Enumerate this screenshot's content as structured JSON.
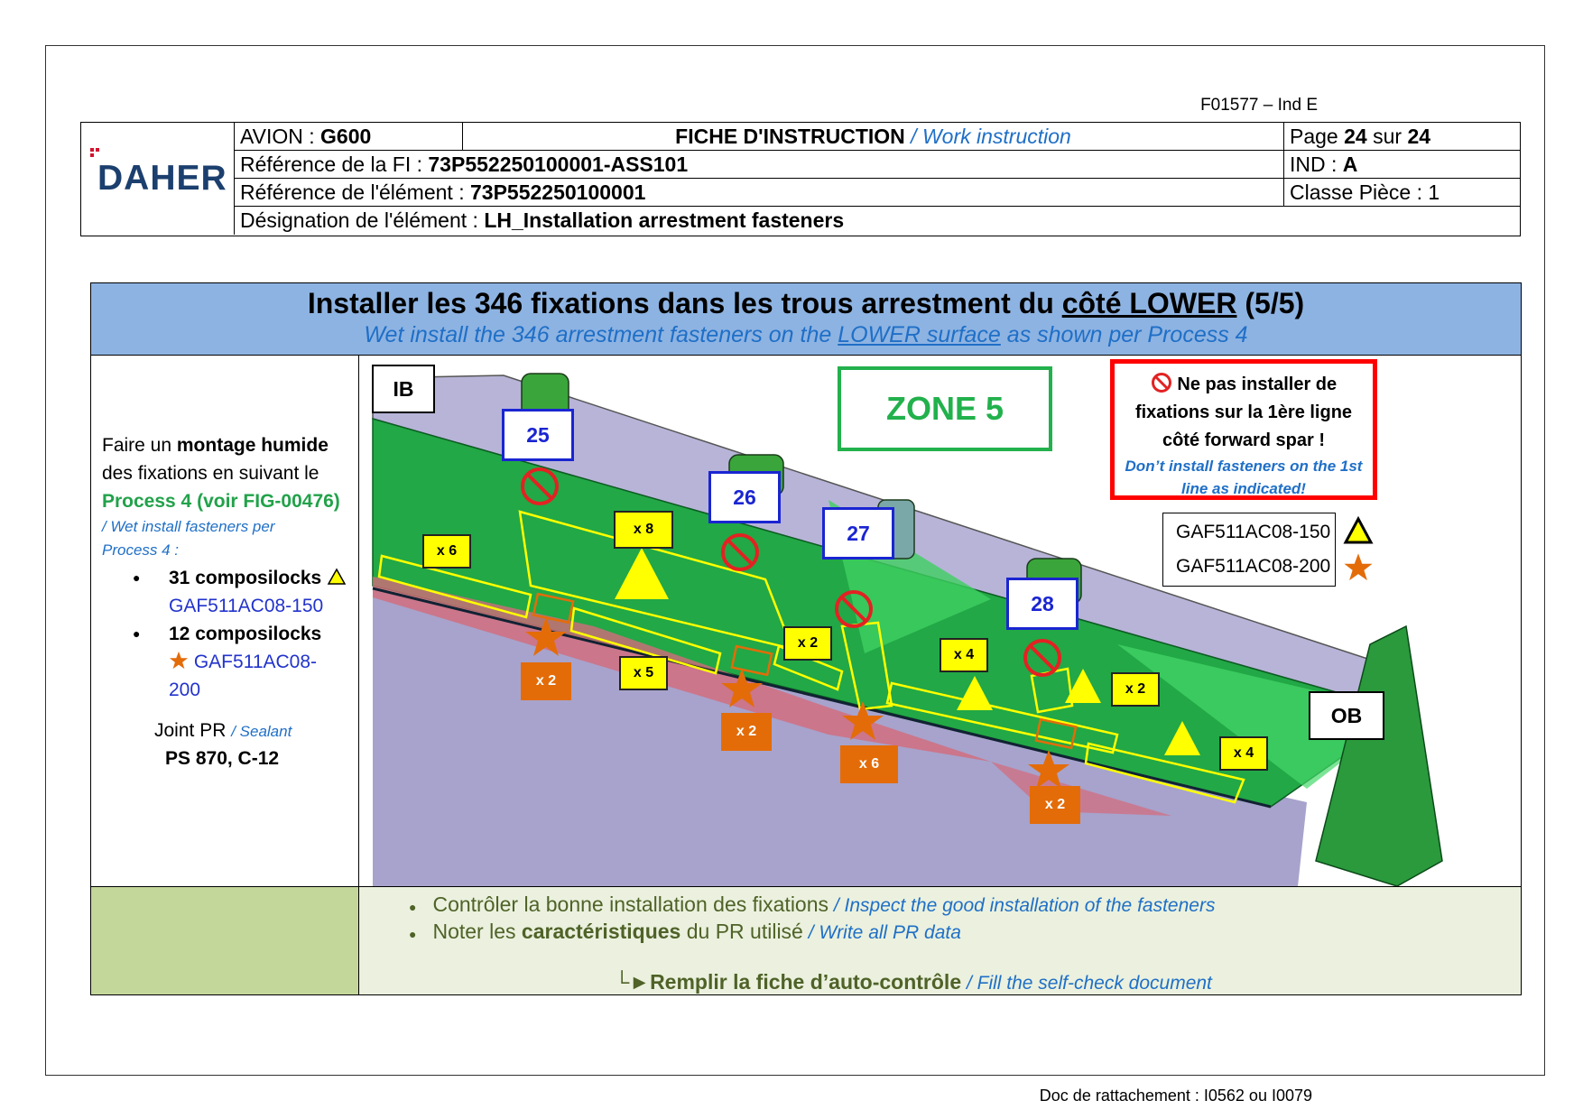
{
  "form_code": "F01577 – Ind E",
  "attachment_doc": "Doc de rattachement : I0562 ou I0079",
  "logo_text": "DAHER",
  "header": {
    "avion_label": "AVION : ",
    "avion_value": "G600",
    "fiche_fr": "FICHE D'INSTRUCTION",
    "fiche_en": " / Work instruction",
    "page_label": "Page ",
    "page_num": "24",
    "page_sep": " sur ",
    "page_total": "24",
    "ref_fi_label": "Référence de la FI : ",
    "ref_fi_value": "73P552250100001-ASS101",
    "ind_label": "IND : ",
    "ind_value": "A",
    "ref_elem_label": "Référence de l'élément : ",
    "ref_elem_value": "73P552250100001",
    "classe": "Classe Pièce : 1",
    "designation_label": "Désignation de l'élément : ",
    "designation_value": "LH_Installation arrestment fasteners"
  },
  "block": {
    "title_a": "Installer les 346 fixations dans les trous arrestment du ",
    "title_u": "côté LOWER",
    "title_b": " (5/5)",
    "subtitle_a": "Wet install the 346 arrestment fasteners on the ",
    "subtitle_u": "LOWER surface",
    "subtitle_b": " as shown per Process 4",
    "left": {
      "l1a": "Faire un ",
      "l1b": "montage humide",
      "l2": "des fixations en suivant le",
      "l3": "Process 4 (voir FIG-00476)",
      "l4": "/ Wet install fasteners per",
      "l5": "Process 4 :",
      "b1": "31 composilocks",
      "b1_ref": "GAF511AC08-150",
      "b2": "12 composilocks",
      "b2_ref_a": "GAF511AC08-",
      "b2_ref_b": "200",
      "joint_a": "Joint PR ",
      "joint_b": "/ Sealant",
      "joint_c": "PS 870, C-12"
    },
    "image": {
      "ib": "IB",
      "ob": "OB",
      "zone": "ZONE 5",
      "stations": [
        "25",
        "26",
        "27",
        "28"
      ],
      "yellow_counts": [
        "x 6",
        "x 8",
        "x 5",
        "x 2",
        "x 4",
        "x 2",
        "x 4"
      ],
      "orange_counts": [
        "x 2",
        "x 2",
        "x 6",
        "x 2"
      ],
      "warning_fr_1": "Ne pas installer de",
      "warning_fr_2": "fixations sur la 1ère ligne",
      "warning_fr_3": "côté forward spar !",
      "warning_en_1": "Don’t install fasteners on the 1st",
      "warning_en_2": "line as indicated!",
      "legend_1": "GAF511AC08-150",
      "legend_2": "GAF511AC08-200"
    },
    "footer": {
      "item1_fr": "Contrôler la bonne installation des fixations",
      "item1_en": " / Inspect the good installation of the fasteners",
      "item2_a": "Noter les ",
      "item2_b": "caractéristiques",
      "item2_c": " du PR utilisé",
      "item2_en": " / Write all PR data",
      "item3_arrow": "└►",
      "item3_fr": "Remplir la fiche d’auto-contrôle",
      "item3_en": " / Fill the self-check document"
    }
  },
  "colors": {
    "header_blue": "#8db3e2",
    "italic_blue": "#1f6fc7",
    "process_green": "#22a24a",
    "zone_green": "#22b14c",
    "warning_red": "#ff0000",
    "marker_yellow": "#ffff00",
    "marker_orange": "#e36c09",
    "footer_left": "#c4d79b",
    "footer_right": "#ebf1de",
    "logo_navy": "#1b3f6e"
  },
  "icons": [
    "no-entry-icon",
    "triangle-icon",
    "star-icon"
  ]
}
